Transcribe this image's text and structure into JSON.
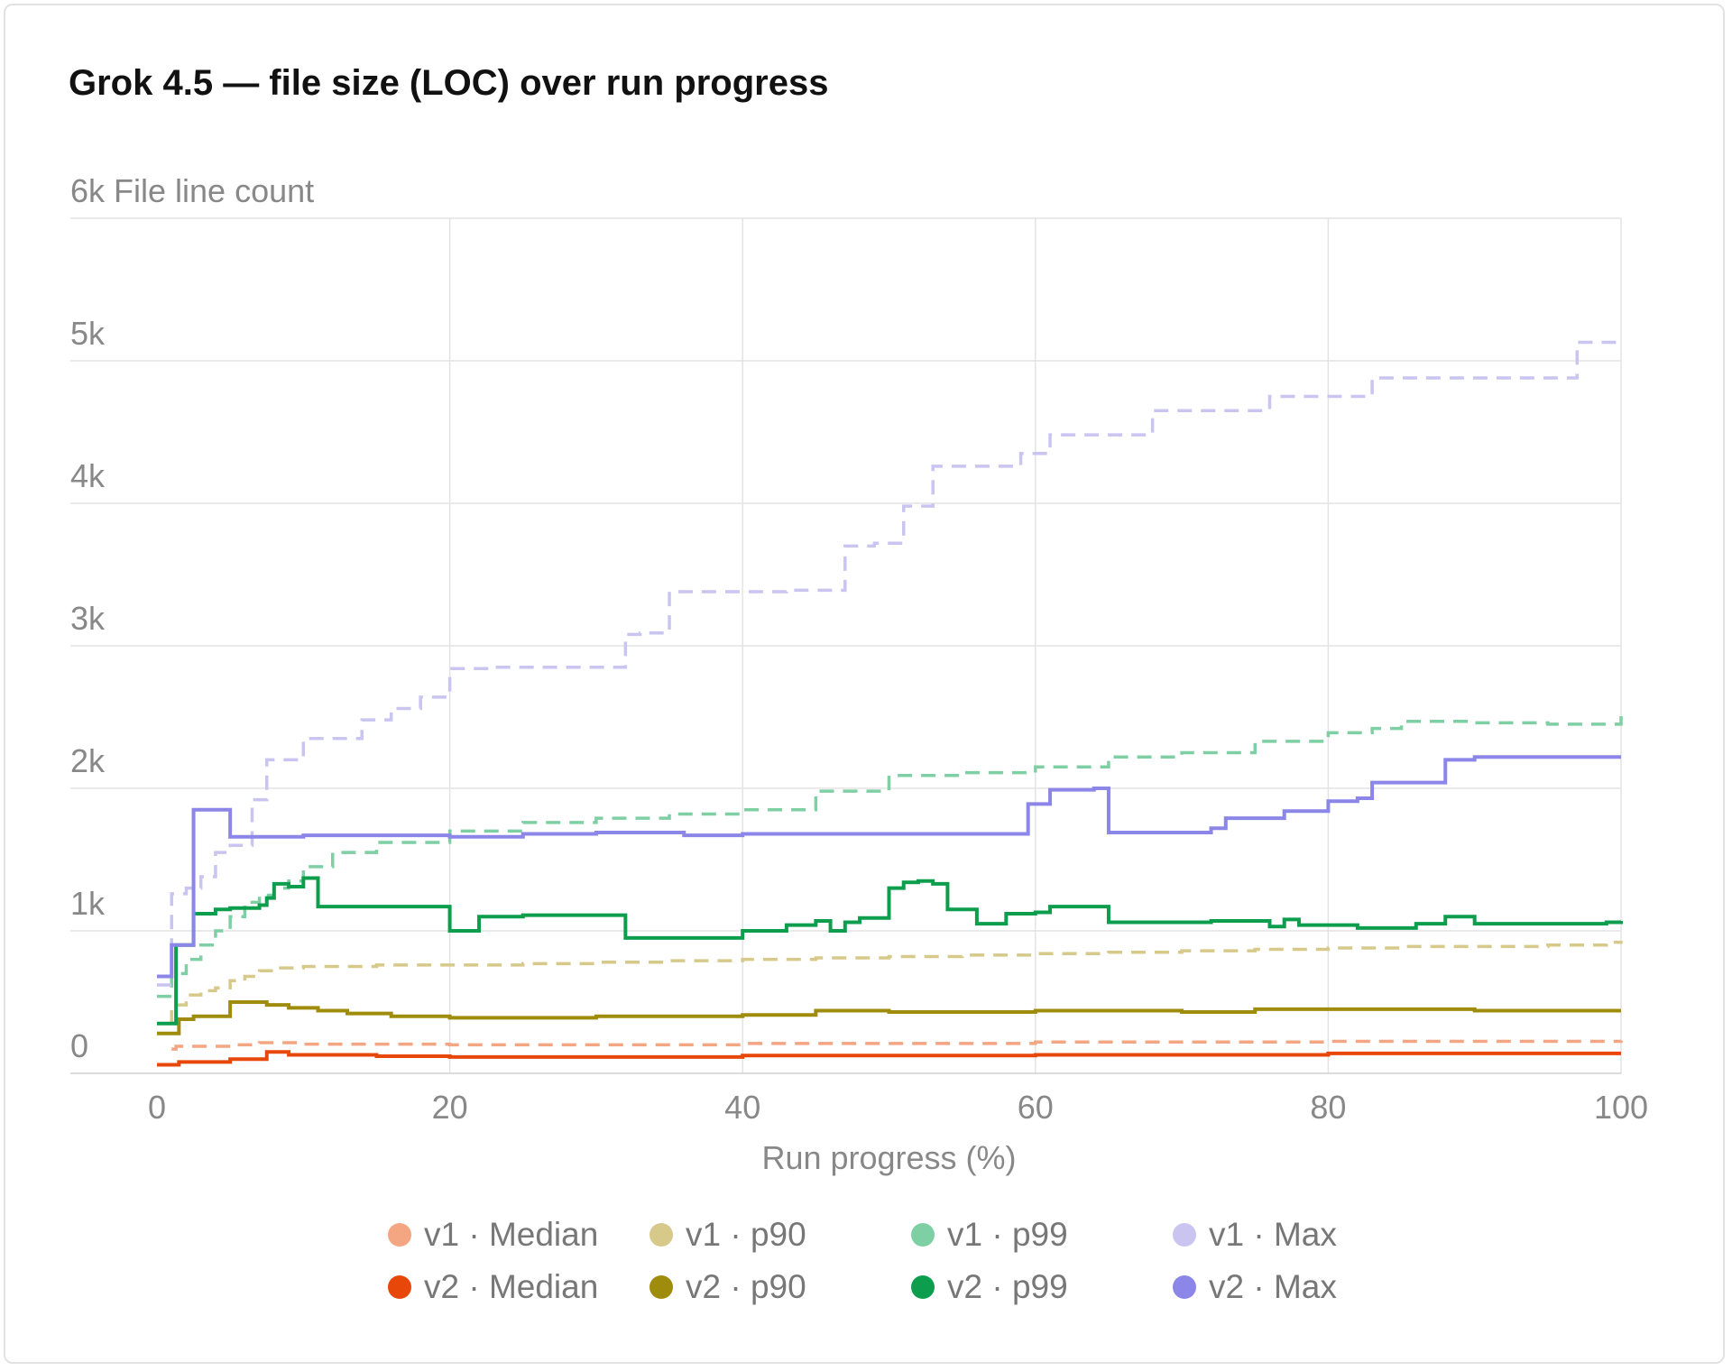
{
  "title": "Grok 4.5 — file size (LOC) over run progress",
  "chart_data": {
    "type": "line",
    "step": true,
    "title": "Grok 4.5 — file size (LOC) over run progress",
    "xlabel": "Run progress (%)",
    "ylabel": "File line count",
    "xlim": [
      0,
      100
    ],
    "ylim": [
      0,
      6000
    ],
    "x_ticks": [
      0,
      20,
      40,
      60,
      80,
      100
    ],
    "y_ticks": [
      0,
      1000,
      2000,
      3000,
      4000,
      5000,
      6000
    ],
    "x_tick_labels": [
      "0",
      "20",
      "40",
      "60",
      "80",
      "100"
    ],
    "y_tick_labels": [
      "0",
      "1k",
      "2k",
      "3k",
      "4k",
      "5k",
      "6k"
    ],
    "grid": true,
    "legend_position": "bottom",
    "series": [
      {
        "name": "v1 · Median",
        "color": "#f4a582",
        "dashed": true,
        "x": [
          1,
          1.3,
          5,
          7,
          10,
          20,
          40,
          60,
          80,
          100
        ],
        "y": [
          170,
          190,
          200,
          215,
          205,
          200,
          210,
          220,
          225,
          230
        ]
      },
      {
        "name": "v2 · Median",
        "color": "#e8470a",
        "dashed": false,
        "x": [
          0,
          1.5,
          5,
          7.5,
          9,
          15,
          20,
          40,
          60,
          80,
          100
        ],
        "y": [
          60,
          80,
          100,
          150,
          130,
          120,
          115,
          125,
          130,
          140,
          140
        ]
      },
      {
        "name": "v1 · p90",
        "color": "#d6c98a",
        "dashed": true,
        "x": [
          0,
          1,
          2,
          3,
          4,
          5,
          6,
          7,
          8,
          10,
          15,
          20,
          25,
          30,
          35,
          40,
          45,
          50,
          55,
          60,
          65,
          70,
          75,
          80,
          85,
          90,
          95,
          99,
          100
        ],
        "y": [
          280,
          480,
          550,
          580,
          600,
          650,
          680,
          720,
          740,
          750,
          760,
          760,
          770,
          780,
          790,
          800,
          810,
          820,
          830,
          840,
          850,
          860,
          870,
          880,
          890,
          890,
          900,
          920,
          930
        ]
      },
      {
        "name": "v2 · p90",
        "color": "#a08c0c",
        "dashed": false,
        "x": [
          0,
          1.5,
          2.5,
          5,
          7.5,
          9,
          11,
          13,
          16,
          20,
          30,
          40,
          45,
          50,
          60,
          70,
          75,
          80,
          90,
          100
        ],
        "y": [
          280,
          380,
          400,
          500,
          480,
          460,
          440,
          420,
          400,
          390,
          400,
          410,
          440,
          430,
          440,
          430,
          450,
          450,
          440,
          440
        ]
      },
      {
        "name": "v1 · p99",
        "color": "#7fcfa4",
        "dashed": true,
        "x": [
          0,
          1,
          2,
          3,
          4,
          5,
          6,
          7,
          8,
          9,
          10,
          12,
          15,
          20,
          25,
          30,
          35,
          40,
          45,
          50,
          55,
          60,
          65,
          70,
          75,
          80,
          83,
          85,
          90,
          95,
          99,
          100
        ],
        "y": [
          540,
          700,
          800,
          900,
          1000,
          1100,
          1200,
          1250,
          1300,
          1350,
          1450,
          1550,
          1620,
          1700,
          1760,
          1790,
          1820,
          1850,
          1980,
          2090,
          2110,
          2150,
          2220,
          2250,
          2330,
          2390,
          2420,
          2470,
          2460,
          2450,
          2450,
          2550
        ]
      },
      {
        "name": "v2 · p99",
        "color": "#0d9e4d",
        "dashed": false,
        "x": [
          0,
          1.3,
          2.5,
          4,
          5,
          7,
          7.5,
          8,
          9,
          10,
          11,
          20,
          22,
          25,
          32,
          40,
          43,
          45,
          46,
          47,
          48,
          50,
          51,
          52,
          53,
          54,
          56,
          58,
          60,
          61,
          65,
          70,
          72,
          76,
          77,
          78,
          82,
          86,
          88,
          90,
          95,
          99,
          100
        ],
        "y": [
          350,
          900,
          1120,
          1150,
          1160,
          1180,
          1230,
          1330,
          1310,
          1370,
          1170,
          1000,
          1100,
          1110,
          950,
          1000,
          1040,
          1070,
          1000,
          1060,
          1090,
          1300,
          1340,
          1350,
          1330,
          1150,
          1050,
          1120,
          1130,
          1170,
          1060,
          1060,
          1070,
          1030,
          1080,
          1040,
          1020,
          1050,
          1100,
          1050,
          1050,
          1060,
          1070
        ]
      },
      {
        "name": "v1 · Max",
        "color": "#c9c4f0",
        "dashed": true,
        "x": [
          0,
          1,
          2,
          3,
          4,
          5,
          6.5,
          7.5,
          10,
          14,
          16,
          18,
          20,
          23,
          32,
          33,
          35,
          38,
          43,
          47,
          49,
          51,
          53,
          59,
          61,
          63,
          68,
          71,
          76,
          83,
          88,
          97,
          100
        ],
        "y": [
          620,
          1260,
          1300,
          1380,
          1550,
          1600,
          1920,
          2200,
          2350,
          2480,
          2560,
          2640,
          2840,
          2850,
          3080,
          3090,
          3380,
          3380,
          3390,
          3700,
          3720,
          3980,
          4260,
          4350,
          4480,
          4480,
          4650,
          4650,
          4750,
          4880,
          4880,
          5130,
          5150
        ]
      },
      {
        "name": "v2 · Max",
        "color": "#8b86e8",
        "dashed": false,
        "x": [
          0,
          1,
          2.5,
          5,
          10,
          15,
          20,
          25,
          30,
          36,
          40,
          45,
          50,
          55,
          59.5,
          61,
          64,
          65,
          70,
          72,
          73,
          77,
          80,
          82,
          83,
          88,
          90,
          100
        ],
        "y": [
          680,
          900,
          1850,
          1660,
          1670,
          1670,
          1660,
          1680,
          1690,
          1670,
          1680,
          1680,
          1680,
          1680,
          1890,
          1990,
          2000,
          1690,
          1690,
          1720,
          1790,
          1840,
          1910,
          1930,
          2040,
          2200,
          2220,
          2220
        ]
      }
    ]
  }
}
